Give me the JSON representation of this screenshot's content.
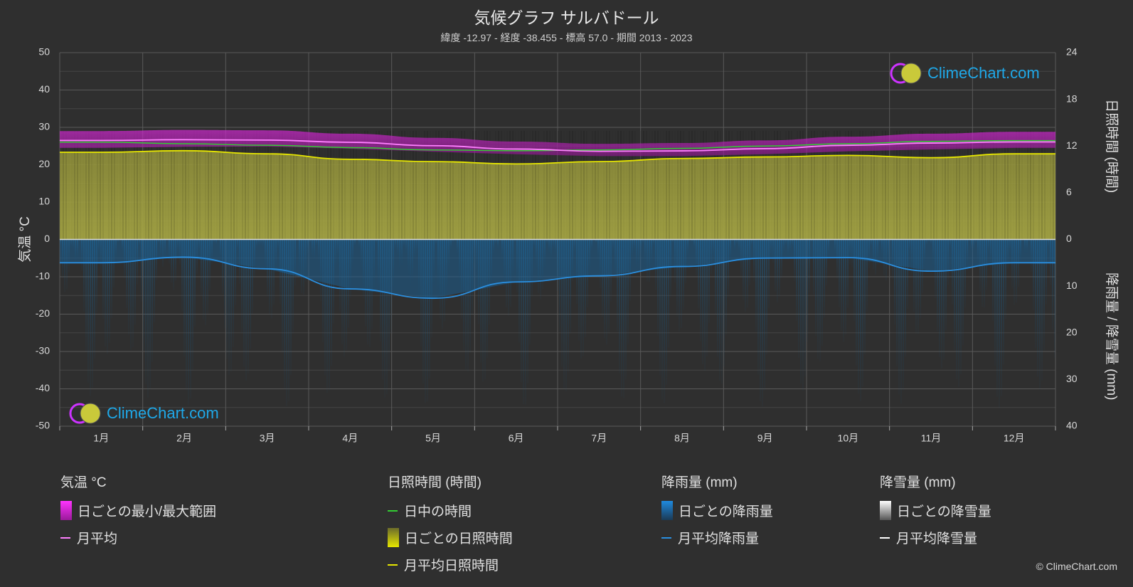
{
  "header": {
    "title": "気候グラフ サルバドール",
    "subtitle": "緯度 -12.97 - 経度 -38.455 - 標高 57.0 - 期間 2013 - 2023"
  },
  "logo": {
    "text": "ClimeChart.com"
  },
  "copyright": "© ClimeChart.com",
  "colors": {
    "background": "#2f2f2f",
    "temp_range": "#d628d6",
    "temp_mean": "#ff80ff",
    "daylight": "#33cc33",
    "sunshine_fill": "#a3a341",
    "sunshine_mean": "#e6e600",
    "rain_fill": "#1b6ea8",
    "rain_mean": "#2a8fe0",
    "snow_mean": "#ffffff"
  },
  "chart_data": {
    "type": "line",
    "title": "気候グラフ サルバドール",
    "categories": [
      "1月",
      "2月",
      "3月",
      "4月",
      "5月",
      "6月",
      "7月",
      "8月",
      "9月",
      "10月",
      "11月",
      "12月"
    ],
    "axes": {
      "left": {
        "label": "気温 °C",
        "ylim": [
          -50,
          50
        ],
        "ticks": [
          "50",
          "40",
          "30",
          "20",
          "10",
          "0",
          "-10",
          "-20",
          "-30",
          "-40",
          "-50"
        ]
      },
      "right_top": {
        "label": "日照時間 (時間)",
        "ylim": [
          0,
          24
        ],
        "ticks": [
          "24",
          "18",
          "12",
          "6",
          "0"
        ]
      },
      "right_bottom": {
        "label": "降雨量 / 降雪量 (mm)",
        "ylim": [
          0,
          40
        ],
        "ticks": [
          "0",
          "10",
          "20",
          "30",
          "40"
        ]
      }
    },
    "grid": true,
    "series": [
      {
        "name": "日ごとの最小/最大範囲",
        "kind": "band",
        "unit": "°C",
        "low": [
          24.5,
          24.8,
          24.9,
          24.3,
          23.5,
          22.8,
          22.3,
          22.3,
          22.8,
          23.6,
          24.1,
          24.5
        ],
        "high": [
          29.0,
          29.3,
          29.2,
          28.3,
          27.2,
          26.2,
          25.6,
          25.8,
          26.5,
          27.5,
          28.3,
          28.8
        ]
      },
      {
        "name": "月平均",
        "kind": "line",
        "unit": "°C",
        "values": [
          26.5,
          26.7,
          26.6,
          26.0,
          25.1,
          24.2,
          23.6,
          23.7,
          24.3,
          25.2,
          25.8,
          26.1
        ]
      },
      {
        "name": "日中の時間",
        "kind": "line",
        "unit": "時間",
        "values": [
          12.5,
          12.3,
          12.1,
          11.8,
          11.5,
          11.4,
          11.5,
          11.7,
          12.0,
          12.3,
          12.6,
          12.7
        ]
      },
      {
        "name": "日ごとの日照時間",
        "kind": "area",
        "unit": "時間",
        "values": [
          11.2,
          11.4,
          11.0,
          10.3,
          10.0,
          9.7,
          10.0,
          10.4,
          10.6,
          10.8,
          10.5,
          11.0
        ]
      },
      {
        "name": "月平均日照時間",
        "kind": "line",
        "unit": "時間",
        "values": [
          11.2,
          11.4,
          11.0,
          10.3,
          10.0,
          9.7,
          10.0,
          10.4,
          10.6,
          10.8,
          10.5,
          11.0
        ]
      },
      {
        "name": "日ごとの降雨量",
        "kind": "area",
        "unit": "mm",
        "values": [
          5.0,
          3.8,
          6.3,
          10.6,
          12.6,
          9.1,
          7.8,
          5.8,
          4.0,
          3.9,
          6.8,
          5.0
        ]
      },
      {
        "name": "月平均降雨量",
        "kind": "line",
        "unit": "mm",
        "values": [
          5.0,
          3.8,
          6.3,
          10.6,
          12.6,
          9.1,
          7.8,
          5.8,
          4.0,
          3.9,
          6.8,
          5.0
        ]
      },
      {
        "name": "日ごとの降雪量",
        "kind": "area",
        "unit": "mm",
        "values": [
          0,
          0,
          0,
          0,
          0,
          0,
          0,
          0,
          0,
          0,
          0,
          0
        ]
      },
      {
        "name": "月平均降雪量",
        "kind": "line",
        "unit": "mm",
        "values": [
          0,
          0,
          0,
          0,
          0,
          0,
          0,
          0,
          0,
          0,
          0,
          0
        ]
      }
    ]
  },
  "legend": {
    "groups": [
      {
        "title": "気温 °C",
        "items": [
          {
            "label": "日ごとの最小/最大範囲"
          },
          {
            "label": "月平均"
          }
        ]
      },
      {
        "title": "日照時間 (時間)",
        "items": [
          {
            "label": "日中の時間"
          },
          {
            "label": "日ごとの日照時間"
          },
          {
            "label": "月平均日照時間"
          }
        ]
      },
      {
        "title": "降雨量 (mm)",
        "items": [
          {
            "label": "日ごとの降雨量"
          },
          {
            "label": "月平均降雨量"
          }
        ]
      },
      {
        "title": "降雪量 (mm)",
        "items": [
          {
            "label": "日ごとの降雪量"
          },
          {
            "label": "月平均降雪量"
          }
        ]
      }
    ]
  }
}
